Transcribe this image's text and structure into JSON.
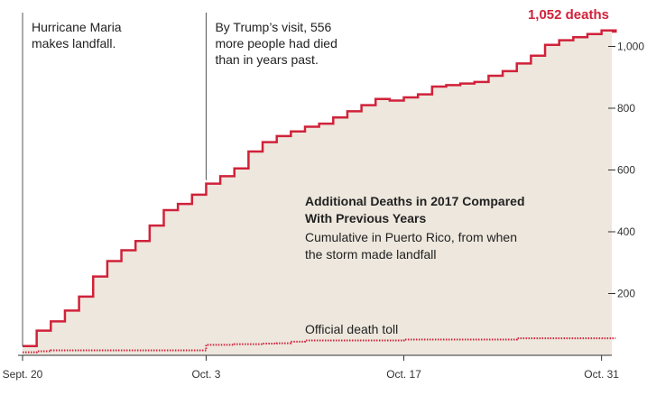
{
  "chart_data": {
    "type": "area",
    "title": "Additional Deaths in 2017 Compared With Previous Years",
    "subtitle_lines": [
      "Cumulative in Puerto Rico, from when",
      "the storm made landfall"
    ],
    "xlabel": "",
    "ylabel": "",
    "ylim": [
      0,
      1100
    ],
    "yticks": [
      200,
      400,
      600,
      800,
      1000
    ],
    "ytick_labels": [
      "200",
      "400",
      "600",
      "800",
      "1,000"
    ],
    "xlim": [
      0,
      42
    ],
    "xticks": [
      0,
      13,
      27,
      41
    ],
    "xtick_labels": [
      "Sept. 20",
      "Oct. 3",
      "Oct. 17",
      "Oct. 31"
    ],
    "grid": false,
    "series": [
      {
        "key": "additional",
        "color": "#d0223a",
        "fill": "#ede7dd",
        "style": "step",
        "x": [
          0,
          1,
          2,
          3,
          4,
          5,
          6,
          7,
          8,
          9,
          10,
          11,
          12,
          13,
          14,
          15,
          16,
          17,
          18,
          19,
          20,
          21,
          22,
          23,
          24,
          25,
          26,
          27,
          28,
          29,
          30,
          31,
          32,
          33,
          34,
          35,
          36,
          37,
          38,
          39,
          40,
          41,
          42
        ],
        "values": [
          30,
          80,
          110,
          145,
          190,
          255,
          305,
          340,
          370,
          420,
          470,
          490,
          520,
          556,
          580,
          605,
          660,
          690,
          710,
          725,
          740,
          750,
          770,
          790,
          810,
          830,
          825,
          835,
          845,
          870,
          875,
          880,
          885,
          905,
          920,
          945,
          970,
          1005,
          1020,
          1030,
          1040,
          1052,
          1048
        ]
      },
      {
        "name": "Official death toll",
        "key": "official",
        "color": "#d0223a",
        "style": "dotted",
        "x": [
          0,
          1,
          2,
          3,
          4,
          5,
          6,
          7,
          8,
          9,
          10,
          11,
          12,
          13,
          14,
          15,
          16,
          17,
          18,
          19,
          20,
          21,
          22,
          23,
          24,
          25,
          26,
          27,
          28,
          29,
          30,
          31,
          32,
          33,
          34,
          35,
          36,
          37,
          38,
          39,
          40,
          41,
          42
        ],
        "values": [
          10,
          13,
          16,
          16,
          16,
          16,
          16,
          16,
          16,
          16,
          16,
          16,
          16,
          34,
          34,
          36,
          36,
          38,
          39,
          44,
          48,
          48,
          48,
          48,
          48,
          48,
          48,
          51,
          51,
          51,
          51,
          51,
          51,
          51,
          51,
          55,
          55,
          55,
          55,
          55,
          55,
          55,
          55
        ]
      }
    ],
    "annotations": [
      {
        "key": "maria",
        "x": 0,
        "lines": [
          "Hurricane Maria",
          "makes landfall."
        ]
      },
      {
        "key": "trump",
        "x": 13,
        "lines": [
          "By Trump’s visit, 556",
          "more people had died",
          "than in years past."
        ]
      }
    ],
    "end_label": "1,052 deaths",
    "official_label": "Official death toll"
  }
}
